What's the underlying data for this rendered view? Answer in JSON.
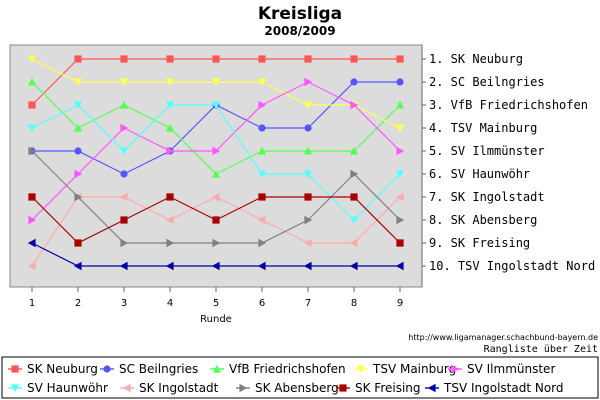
{
  "chart_data": {
    "type": "line",
    "title": "Kreisliga",
    "subtitle": "2008/2009",
    "xlabel": "Runde",
    "x": [
      1,
      2,
      3,
      4,
      5,
      6,
      7,
      8,
      9
    ],
    "ylim": [
      10,
      1
    ],
    "y_inverted": true,
    "grid": false,
    "legend_position": "bottom",
    "right_axis_labels": [
      "1. SK Neuburg",
      "2. SC Beilngries",
      "3. VfB Friedrichshofen",
      "4. TSV Mainburg",
      "5. SV Ilmmünster",
      "6. SV Haunwöhr",
      "7. SK Ingolstadt",
      "8. SK Abensberg",
      "9. SK Freising",
      "10. TSV Ingolstadt Nord"
    ],
    "source_text": "http://www.ligamanager.schachbund-bayern.de",
    "note_text": "Rangliste über Zeit",
    "series": [
      {
        "name": "SK Neuburg",
        "color": "#ff5555",
        "marker": "square",
        "values": [
          3,
          1,
          1,
          1,
          1,
          1,
          1,
          1,
          1
        ]
      },
      {
        "name": "SC Beilngries",
        "color": "#5555ff",
        "marker": "circle",
        "values": [
          5,
          5,
          6,
          5,
          3,
          4,
          4,
          2,
          2
        ]
      },
      {
        "name": "VfB Friedrichshofen",
        "color": "#55ff55",
        "marker": "triangle-up",
        "values": [
          2,
          4,
          3,
          4,
          6,
          5,
          5,
          5,
          3
        ]
      },
      {
        "name": "TSV Mainburg",
        "color": "#ffff55",
        "marker": "triangle-down",
        "values": [
          1,
          2,
          2,
          2,
          2,
          2,
          3,
          3,
          4
        ]
      },
      {
        "name": "SV Ilmmünster",
        "color": "#ff55ff",
        "marker": "triangle-right",
        "values": [
          8,
          6,
          4,
          5,
          5,
          3,
          2,
          3,
          5
        ]
      },
      {
        "name": "SV Haunwöhr",
        "color": "#55ffff",
        "marker": "triangle-down",
        "values": [
          4,
          3,
          5,
          3,
          3,
          6,
          6,
          8,
          6
        ]
      },
      {
        "name": "SK Ingolstadt",
        "color": "#ffaaaa",
        "marker": "triangle-left",
        "values": [
          10,
          7,
          7,
          8,
          7,
          8,
          9,
          9,
          7
        ]
      },
      {
        "name": "SK Abensberg",
        "color": "#808080",
        "marker": "triangle-right",
        "values": [
          5,
          7,
          9,
          9,
          9,
          9,
          8,
          6,
          8
        ]
      },
      {
        "name": "SK Freising",
        "color": "#aa0000",
        "marker": "square",
        "values": [
          7,
          9,
          8,
          7,
          8,
          7,
          7,
          7,
          9
        ]
      },
      {
        "name": "TSV Ingolstadt Nord",
        "color": "#0000aa",
        "marker": "triangle-left",
        "values": [
          9,
          10,
          10,
          10,
          10,
          10,
          10,
          10,
          10
        ]
      }
    ]
  }
}
